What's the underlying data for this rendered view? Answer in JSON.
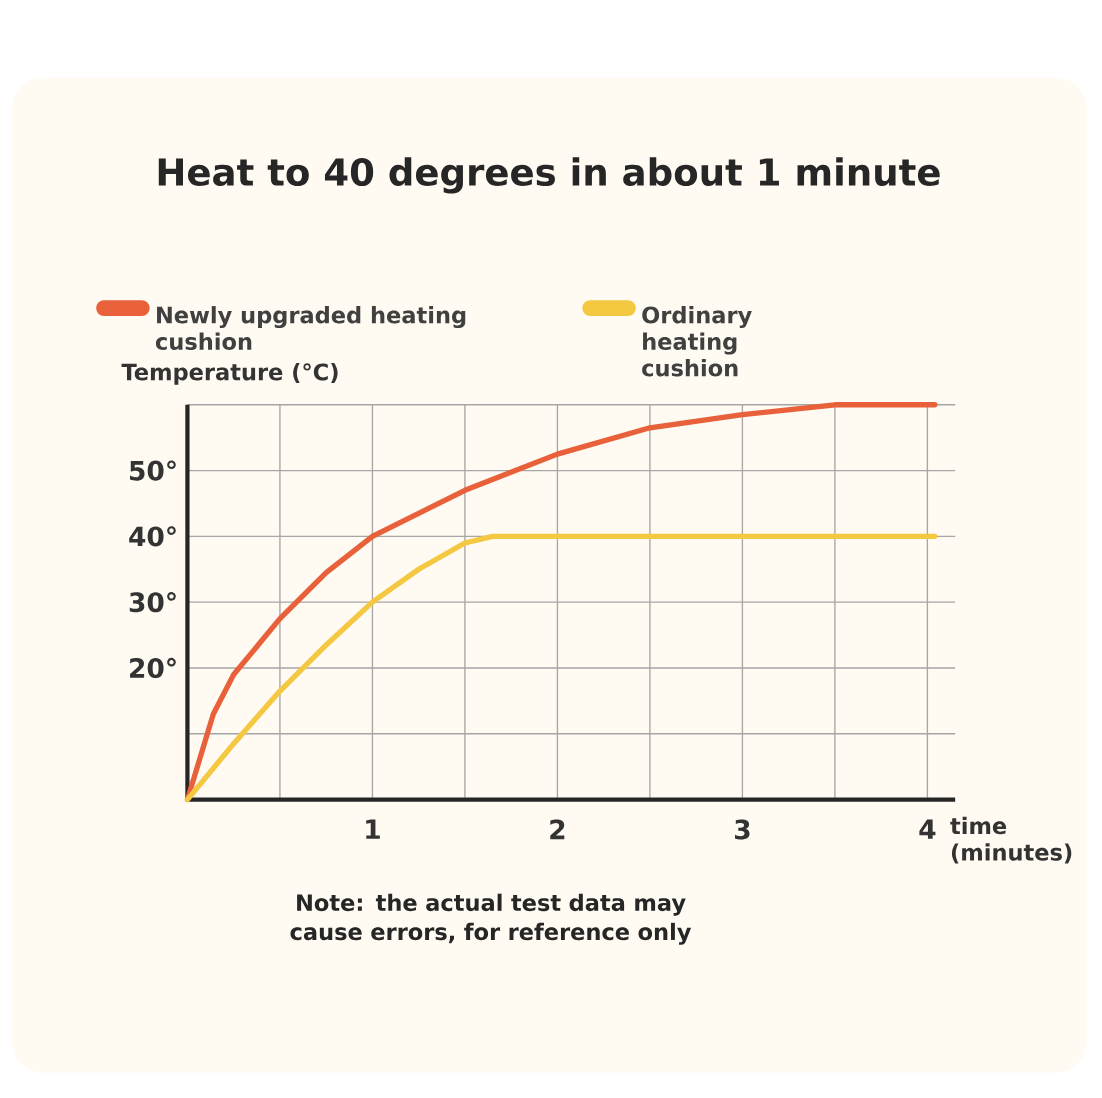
{
  "chart_data": {
    "type": "line",
    "title": "Heat to 40 degrees in about 1 minute",
    "ylabel": "Temperature (°C)",
    "xlabel": "time (minutes)",
    "series": [
      {
        "name": "Newly upgraded heating cushion",
        "color": "#e8613a",
        "x": [
          0,
          0.14,
          0.25,
          0.5,
          0.75,
          1,
          1.5,
          2,
          2.5,
          3,
          3.5,
          4.04
        ],
        "values": [
          0,
          13,
          19,
          27.5,
          34.5,
          40,
          47,
          52.5,
          56.5,
          58.5,
          60,
          60
        ]
      },
      {
        "name": "Ordinary heating cushion",
        "color": "#f5c842",
        "x": [
          0,
          0.25,
          0.5,
          0.75,
          1,
          1.25,
          1.5,
          1.65,
          1.8,
          2,
          3,
          4.04
        ],
        "values": [
          0,
          8.5,
          16.5,
          23.5,
          30,
          35,
          39,
          40,
          40,
          40,
          40,
          40
        ]
      }
    ],
    "xlim": [
      0,
      4.15
    ],
    "ylim": [
      0,
      60
    ],
    "xticks": [
      {
        "value": 0.5,
        "label": null
      },
      1,
      {
        "value": 1.5,
        "label": null
      },
      2,
      {
        "value": 2.5,
        "label": null
      },
      3,
      {
        "value": 3.5,
        "label": null
      },
      4
    ],
    "yticks": [
      {
        "value": 10,
        "label": null
      },
      {
        "value": 20,
        "label": "20°"
      },
      {
        "value": 30,
        "label": "30°"
      },
      {
        "value": 40,
        "label": "40°"
      },
      {
        "value": 50,
        "label": "50°"
      },
      {
        "value": 60,
        "label": null
      }
    ],
    "grid": true,
    "legend": "top",
    "line_style": "solid",
    "marker": "none",
    "annotations": [
      "Note: the actual test data may cause errors, for reference only"
    ]
  }
}
